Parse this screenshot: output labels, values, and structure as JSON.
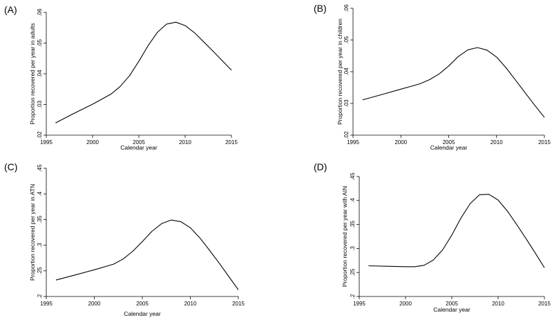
{
  "chart_data": [
    {
      "type": "line",
      "panel_label": "(A)",
      "title": "",
      "xlabel": "Calendar year",
      "ylabel": "Proportion recovered per year in adults",
      "xlim": [
        1995,
        2015
      ],
      "ylim": [
        0.02,
        0.06
      ],
      "xticks": [
        1995,
        2000,
        2005,
        2010,
        2015
      ],
      "xtick_labels": [
        "1995",
        "2000",
        "2005",
        "2010",
        "2015"
      ],
      "yticks": [
        0.02,
        0.03,
        0.04,
        0.05,
        0.06
      ],
      "ytick_labels": [
        ".02",
        ".03",
        ".04",
        ".05",
        ".06"
      ],
      "grid": false,
      "x": [
        1996,
        1998,
        2000,
        2002,
        2003,
        2004,
        2005,
        2006,
        2007,
        2008,
        2009,
        2010,
        2011,
        2012,
        2013,
        2014,
        2015
      ],
      "y": [
        0.024,
        0.0271,
        0.0301,
        0.0334,
        0.0359,
        0.0394,
        0.0441,
        0.0492,
        0.0535,
        0.0562,
        0.0568,
        0.0557,
        0.0534,
        0.0504,
        0.0474,
        0.0443,
        0.0412
      ]
    },
    {
      "type": "line",
      "panel_label": "(B)",
      "title": "",
      "xlabel": "Calendar year",
      "ylabel": "Proportion recovered per year in children",
      "xlim": [
        1995,
        2015
      ],
      "ylim": [
        0.02,
        0.06
      ],
      "xticks": [
        1995,
        2000,
        2005,
        2010,
        2015
      ],
      "xtick_labels": [
        "1995",
        "2000",
        "2005",
        "2010",
        "2015"
      ],
      "yticks": [
        0.02,
        0.03,
        0.04,
        0.05,
        0.06
      ],
      "ytick_labels": [
        ".02",
        ".03",
        ".04",
        ".05",
        ".06"
      ],
      "grid": false,
      "x": [
        1996,
        1998,
        2000,
        2002,
        2003,
        2004,
        2005,
        2006,
        2007,
        2008,
        2009,
        2010,
        2011,
        2012,
        2013,
        2014,
        2015
      ],
      "y": [
        0.0311,
        0.0328,
        0.0345,
        0.0362,
        0.0375,
        0.0393,
        0.0418,
        0.0448,
        0.0469,
        0.0476,
        0.0468,
        0.0446,
        0.0412,
        0.0373,
        0.0333,
        0.0294,
        0.0256
      ]
    },
    {
      "type": "line",
      "panel_label": "(C)",
      "title": "",
      "xlabel": "Calendar year",
      "ylabel": "Proportion recovered per year in ATN",
      "xlim": [
        1995,
        2015
      ],
      "ylim": [
        0.2,
        0.45
      ],
      "xticks": [
        1995,
        2000,
        2005,
        2010,
        2015
      ],
      "xtick_labels": [
        "1995",
        "2000",
        "2005",
        "2010",
        "2015"
      ],
      "yticks": [
        0.2,
        0.25,
        0.3,
        0.35,
        0.4,
        0.45
      ],
      "ytick_labels": [
        ".2",
        ".25",
        ".3",
        ".35",
        ".4",
        ".45"
      ],
      "grid": false,
      "x": [
        1996,
        1998,
        2000,
        2002,
        2003,
        2004,
        2005,
        2006,
        2007,
        2008,
        2009,
        2010,
        2011,
        2012,
        2013,
        2014,
        2015
      ],
      "y": [
        0.232,
        0.242,
        0.252,
        0.263,
        0.273,
        0.288,
        0.307,
        0.327,
        0.342,
        0.349,
        0.346,
        0.334,
        0.314,
        0.29,
        0.265,
        0.239,
        0.213
      ]
    },
    {
      "type": "line",
      "panel_label": "(D)",
      "title": "",
      "xlabel": "Calendar year",
      "ylabel": "Proportion recovered per year with AIN",
      "xlim": [
        1995,
        2015
      ],
      "ylim": [
        0.2,
        0.45
      ],
      "xticks": [
        1995,
        2000,
        2005,
        2010,
        2015
      ],
      "xtick_labels": [
        "1995",
        "2000",
        "2005",
        "2010",
        "2015"
      ],
      "yticks": [
        0.2,
        0.25,
        0.3,
        0.35,
        0.4,
        0.45
      ],
      "ytick_labels": [
        ".2",
        ".25",
        ".3",
        ".35",
        ".4",
        ".45"
      ],
      "grid": false,
      "x": [
        1996,
        1998,
        2000,
        2001,
        2002,
        2003,
        2004,
        2005,
        2006,
        2007,
        2008,
        2009,
        2010,
        2011,
        2012,
        2013,
        2014,
        2015
      ],
      "y": [
        0.264,
        0.263,
        0.262,
        0.262,
        0.265,
        0.276,
        0.297,
        0.328,
        0.364,
        0.394,
        0.412,
        0.413,
        0.401,
        0.378,
        0.35,
        0.321,
        0.291,
        0.26
      ]
    }
  ]
}
